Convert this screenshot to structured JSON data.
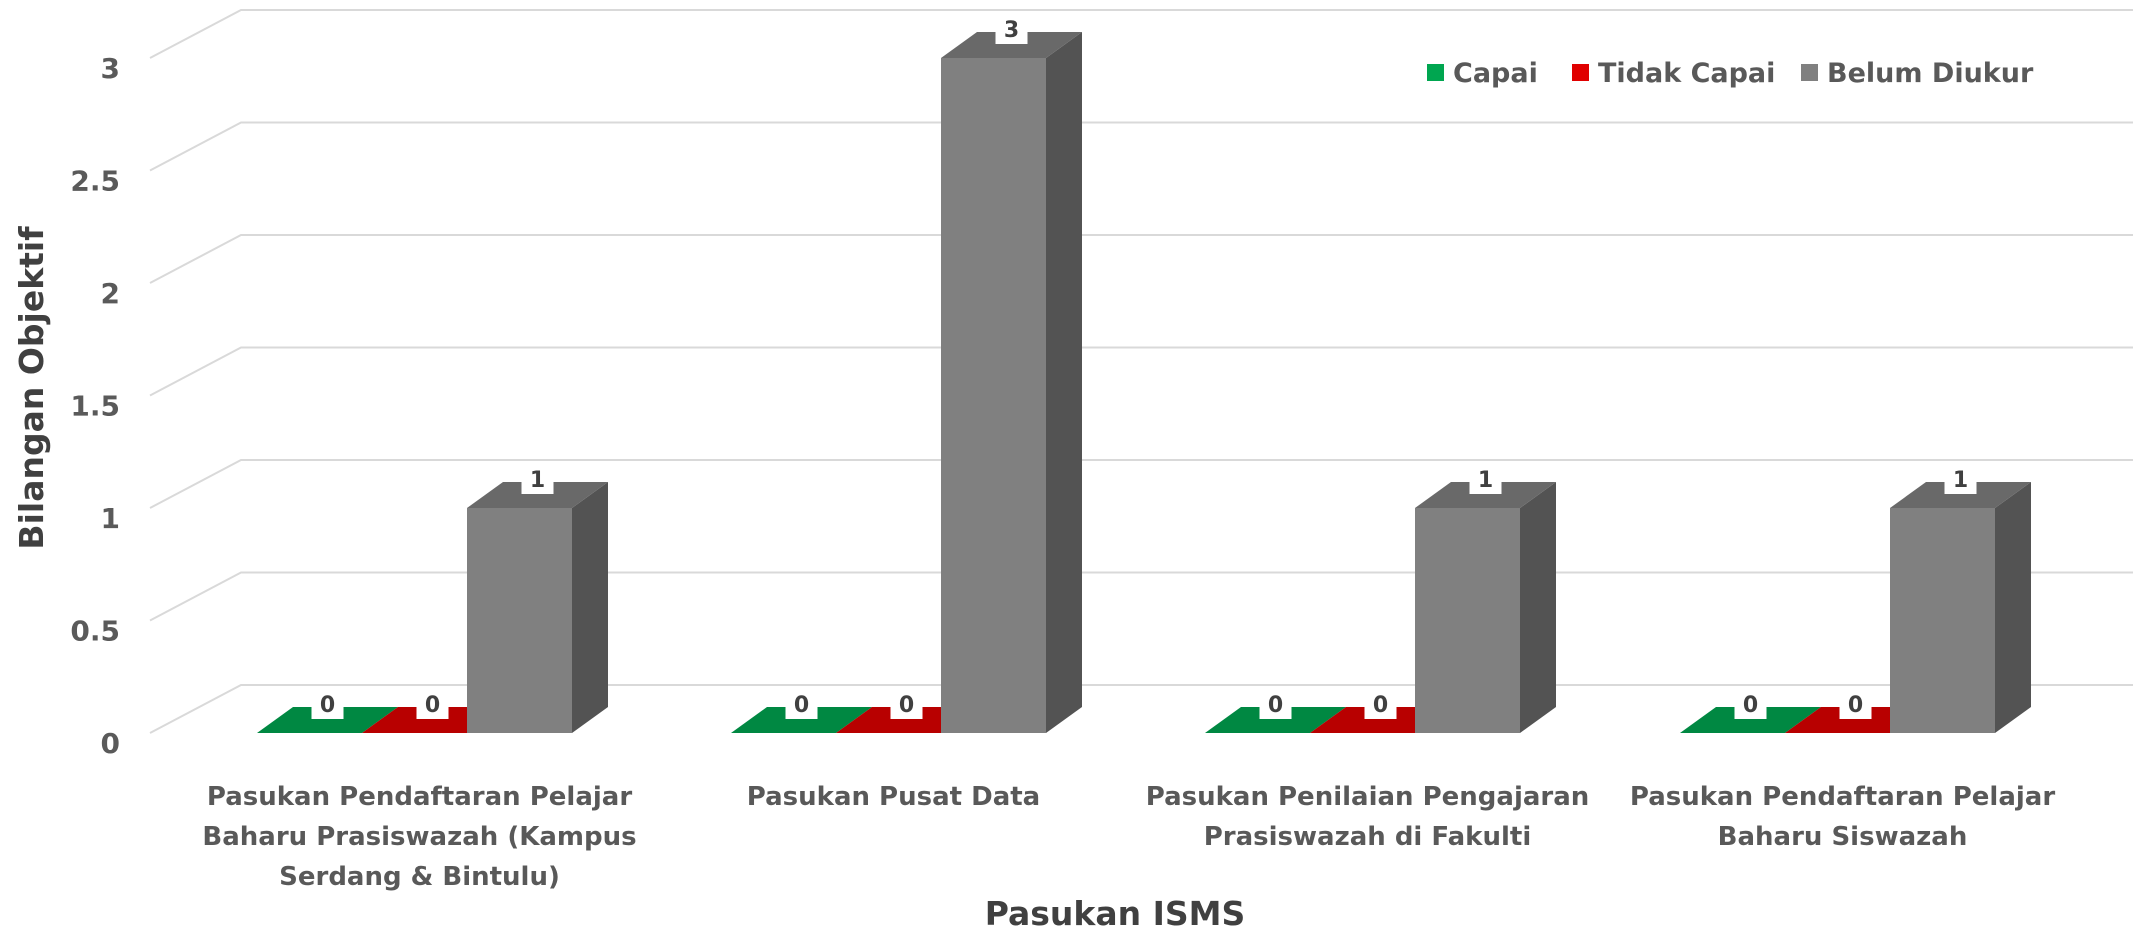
{
  "chart_data": {
    "type": "bar",
    "title": "",
    "xlabel": "Pasukan ISMS",
    "ylabel": "Bilangan Objektif",
    "ylim": [
      0,
      3
    ],
    "yticks": [
      "0",
      "0.5",
      "1",
      "1.5",
      "2",
      "2.5",
      "3"
    ],
    "grid": true,
    "legend_position": "top-right",
    "categories": [
      [
        "Pasukan Pendaftaran Pelajar",
        "Baharu Prasiswazah (Kampus",
        "Serdang & Bintulu)"
      ],
      [
        "Pasukan Pusat Data"
      ],
      [
        "Pasukan Penilaian Pengajaran",
        "Prasiswazah di Fakulti"
      ],
      [
        "Pasukan Pendaftaran Pelajar",
        "Baharu Siswazah"
      ]
    ],
    "series": [
      {
        "name": "Capai",
        "color": "#00a650",
        "values": [
          0,
          0,
          0,
          0
        ]
      },
      {
        "name": "Tidak Capai",
        "color": "#e00000",
        "values": [
          0,
          0,
          0,
          0
        ]
      },
      {
        "name": "Belum Diukur",
        "color": "#808080",
        "values": [
          1,
          3,
          1,
          1
        ]
      }
    ]
  }
}
